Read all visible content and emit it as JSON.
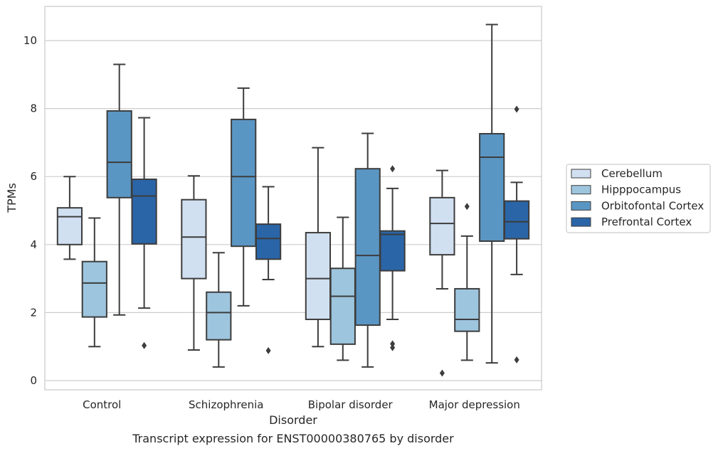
{
  "chart_data": {
    "type": "box",
    "title": "",
    "caption": "Transcript expression for ENST00000380765 by disorder",
    "xlabel": "Disorder",
    "ylabel": "TPMs",
    "ylim": [
      -0.3,
      11
    ],
    "yticks": [
      0,
      2,
      4,
      6,
      8,
      10
    ],
    "grid": "horizontal",
    "legend_position": "right",
    "categories": [
      "Control",
      "Schizophrenia",
      "Bipolar disorder",
      "Major depression"
    ],
    "series": [
      {
        "name": "Cerebellum",
        "color": "#d1e0f1",
        "boxes": [
          {
            "whislo": 3.57,
            "q1": 4.0,
            "med": 4.82,
            "q3": 5.08,
            "whishi": 6.0,
            "fliers": []
          },
          {
            "whislo": 0.9,
            "q1": 3.0,
            "med": 4.22,
            "q3": 5.32,
            "whishi": 6.02,
            "fliers": []
          },
          {
            "whislo": 1.0,
            "q1": 1.8,
            "med": 3.0,
            "q3": 4.35,
            "whishi": 6.85,
            "fliers": []
          },
          {
            "whislo": 2.7,
            "q1": 3.7,
            "med": 4.62,
            "q3": 5.38,
            "whishi": 6.18,
            "fliers": [
              0.22
            ]
          }
        ]
      },
      {
        "name": "Hipppocampus",
        "color": "#9dc5de",
        "boxes": [
          {
            "whislo": 1.0,
            "q1": 1.87,
            "med": 2.87,
            "q3": 3.5,
            "whishi": 4.78,
            "fliers": []
          },
          {
            "whislo": 0.4,
            "q1": 1.2,
            "med": 2.0,
            "q3": 2.6,
            "whishi": 3.76,
            "fliers": []
          },
          {
            "whislo": 0.6,
            "q1": 1.07,
            "med": 2.48,
            "q3": 3.3,
            "whishi": 4.8,
            "fliers": []
          },
          {
            "whislo": 0.6,
            "q1": 1.45,
            "med": 1.8,
            "q3": 2.7,
            "whishi": 4.25,
            "fliers": [
              5.12
            ]
          }
        ]
      },
      {
        "name": "Orbitofontal Cortex",
        "color": "#5a96c4",
        "boxes": [
          {
            "whislo": 1.93,
            "q1": 5.38,
            "med": 6.42,
            "q3": 7.93,
            "whishi": 9.3,
            "fliers": []
          },
          {
            "whislo": 2.2,
            "q1": 3.95,
            "med": 6.0,
            "q3": 7.68,
            "whishi": 8.6,
            "fliers": []
          },
          {
            "whislo": 0.4,
            "q1": 1.63,
            "med": 3.68,
            "q3": 6.23,
            "whishi": 7.27,
            "fliers": []
          },
          {
            "whislo": 0.52,
            "q1": 4.1,
            "med": 6.57,
            "q3": 7.26,
            "whishi": 10.47,
            "fliers": []
          }
        ]
      },
      {
        "name": "Prefrontal Cortex",
        "color": "#2a65a7",
        "boxes": [
          {
            "whislo": 2.13,
            "q1": 4.02,
            "med": 5.43,
            "q3": 5.92,
            "whishi": 7.73,
            "fliers": [
              1.03
            ]
          },
          {
            "whislo": 2.97,
            "q1": 3.57,
            "med": 4.18,
            "q3": 4.6,
            "whishi": 5.7,
            "fliers": [
              0.88
            ]
          },
          {
            "whislo": 1.8,
            "q1": 3.23,
            "med": 4.3,
            "q3": 4.4,
            "whishi": 5.65,
            "fliers": [
              6.23,
              1.08,
              0.97
            ]
          },
          {
            "whislo": 3.12,
            "q1": 4.17,
            "med": 4.67,
            "q3": 5.28,
            "whishi": 5.83,
            "fliers": [
              7.98,
              0.61
            ]
          }
        ]
      }
    ]
  }
}
